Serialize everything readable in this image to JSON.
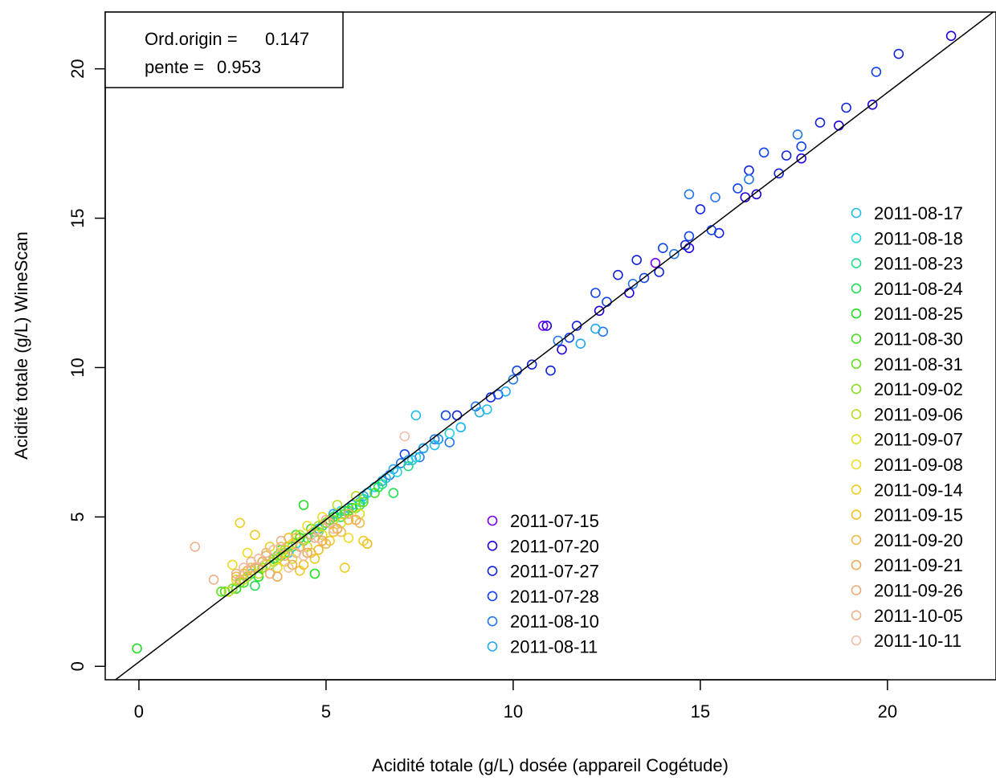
{
  "chart_data": {
    "type": "scatter",
    "title": "",
    "xlabel": "Acidité totale (g/L) dosée (appareil Cogétude)",
    "ylabel": "Acidité totale (g/L) WineScan",
    "xlim": [
      -0.9,
      22.9
    ],
    "ylim": [
      -0.45,
      21.9
    ],
    "xticks": [
      0,
      5,
      10,
      15,
      20
    ],
    "xtick_labels": [
      "0",
      "5",
      "10",
      "15",
      "20"
    ],
    "yticks": [
      0,
      5,
      10,
      15,
      20
    ],
    "ytick_labels": [
      "0",
      "5",
      "10",
      "15",
      "20"
    ],
    "grid": false,
    "regression": {
      "intercept": 0.147,
      "slope": 0.953,
      "label_intercept": "Ord.origin =",
      "value_intercept": "0.147",
      "label_slope": "pente =",
      "value_slope": "0.953"
    },
    "legend_placement": "bottom-right (two columns)",
    "series": [
      {
        "name": "2011-07-15",
        "color": "#7700ee",
        "points": [
          [
            10.8,
            11.4
          ],
          [
            13.8,
            13.5
          ]
        ]
      },
      {
        "name": "2011-07-20",
        "color": "#2200dd",
        "points": [
          [
            8.0,
            7.6
          ],
          [
            10.9,
            11.4
          ],
          [
            11.3,
            10.6
          ],
          [
            12.3,
            11.9
          ],
          [
            13.1,
            12.5
          ],
          [
            14.7,
            14.0
          ],
          [
            16.2,
            15.7
          ],
          [
            16.5,
            15.8
          ],
          [
            17.7,
            17.0
          ],
          [
            18.7,
            18.1
          ],
          [
            19.6,
            18.8
          ],
          [
            21.7,
            21.1
          ]
        ]
      },
      {
        "name": "2011-07-27",
        "color": "#1122dd",
        "points": [
          [
            8.5,
            8.4
          ],
          [
            9.4,
            9.0
          ],
          [
            10.5,
            10.1
          ],
          [
            11.0,
            9.9
          ],
          [
            11.7,
            11.4
          ],
          [
            12.8,
            13.1
          ],
          [
            13.3,
            13.6
          ],
          [
            13.9,
            13.2
          ],
          [
            14.6,
            14.1
          ],
          [
            15.0,
            15.3
          ],
          [
            15.5,
            14.5
          ],
          [
            16.3,
            16.6
          ],
          [
            17.1,
            16.5
          ],
          [
            17.3,
            17.1
          ],
          [
            18.2,
            18.2
          ],
          [
            18.9,
            18.7
          ],
          [
            20.3,
            20.5
          ]
        ]
      },
      {
        "name": "2011-07-28",
        "color": "#1144ee",
        "points": [
          [
            7.1,
            7.1
          ],
          [
            7.6,
            7.3
          ],
          [
            8.2,
            8.4
          ],
          [
            9.6,
            9.1
          ],
          [
            10.1,
            9.9
          ],
          [
            11.5,
            11.0
          ],
          [
            12.2,
            12.5
          ],
          [
            12.5,
            12.2
          ],
          [
            13.5,
            13.0
          ],
          [
            14.0,
            14.0
          ],
          [
            14.7,
            14.4
          ],
          [
            15.3,
            14.6
          ],
          [
            16.0,
            16.0
          ],
          [
            16.7,
            17.2
          ],
          [
            17.7,
            17.4
          ],
          [
            19.7,
            19.9
          ]
        ]
      },
      {
        "name": "2011-08-10",
        "color": "#2277ee",
        "points": [
          [
            6.3,
            6.0
          ],
          [
            6.7,
            6.4
          ],
          [
            7.0,
            6.8
          ],
          [
            7.5,
            7.0
          ],
          [
            7.9,
            7.6
          ],
          [
            8.3,
            7.5
          ],
          [
            9.0,
            8.7
          ],
          [
            10.0,
            9.6
          ],
          [
            11.2,
            10.9
          ],
          [
            12.4,
            11.2
          ],
          [
            13.2,
            12.8
          ],
          [
            14.3,
            13.8
          ],
          [
            14.7,
            15.8
          ],
          [
            15.4,
            15.7
          ],
          [
            16.3,
            16.3
          ],
          [
            17.6,
            17.8
          ]
        ]
      },
      {
        "name": "2011-08-11",
        "color": "#22a8ee",
        "points": [
          [
            4.8,
            4.7
          ],
          [
            5.2,
            5.1
          ],
          [
            5.6,
            5.3
          ],
          [
            6.0,
            5.7
          ],
          [
            6.5,
            6.2
          ],
          [
            6.8,
            6.6
          ],
          [
            7.2,
            6.9
          ],
          [
            7.6,
            7.3
          ],
          [
            8.0,
            7.6
          ],
          [
            8.6,
            8.0
          ],
          [
            9.1,
            8.5
          ],
          [
            9.8,
            9.2
          ],
          [
            11.8,
            10.8
          ],
          [
            12.2,
            11.3
          ]
        ]
      },
      {
        "name": "2011-08-17",
        "color": "#22bbee",
        "points": [
          [
            3.3,
            3.3
          ],
          [
            3.6,
            3.5
          ],
          [
            4.0,
            3.8
          ],
          [
            4.4,
            4.2
          ],
          [
            4.8,
            4.6
          ],
          [
            5.3,
            5.1
          ],
          [
            5.7,
            5.4
          ],
          [
            6.1,
            5.8
          ],
          [
            6.6,
            6.3
          ],
          [
            7.3,
            6.9
          ],
          [
            7.9,
            7.4
          ],
          [
            8.6,
            8.0
          ],
          [
            7.4,
            8.4
          ],
          [
            9.3,
            8.6
          ]
        ]
      },
      {
        "name": "2011-08-18",
        "color": "#22d4dd",
        "points": [
          [
            3.4,
            3.7
          ],
          [
            3.9,
            3.9
          ],
          [
            4.2,
            4.1
          ],
          [
            4.6,
            4.4
          ],
          [
            5.0,
            4.8
          ],
          [
            5.4,
            5.2
          ],
          [
            5.9,
            5.5
          ],
          [
            6.3,
            6.0
          ],
          [
            6.9,
            6.5
          ],
          [
            7.4,
            7.0
          ],
          [
            8.3,
            7.8
          ]
        ]
      },
      {
        "name": "2011-08-23",
        "color": "#22dd88",
        "points": [
          [
            3.0,
            3.1
          ],
          [
            3.5,
            3.4
          ],
          [
            3.9,
            3.8
          ],
          [
            4.3,
            4.0
          ],
          [
            4.7,
            4.5
          ],
          [
            5.1,
            4.9
          ],
          [
            5.5,
            5.2
          ],
          [
            6.0,
            5.6
          ],
          [
            6.5,
            6.1
          ],
          [
            7.2,
            6.7
          ]
        ]
      },
      {
        "name": "2011-08-24",
        "color": "#22dd55",
        "points": [
          [
            3.1,
            2.7
          ],
          [
            3.6,
            3.6
          ],
          [
            4.1,
            4.0
          ],
          [
            4.5,
            4.3
          ],
          [
            4.9,
            4.7
          ],
          [
            5.4,
            5.0
          ],
          [
            5.9,
            5.4
          ],
          [
            6.4,
            6.0
          ],
          [
            6.8,
            5.8
          ]
        ]
      },
      {
        "name": "2011-08-25",
        "color": "#22dd22",
        "points": [
          [
            -0.05,
            0.6
          ],
          [
            2.6,
            2.6
          ],
          [
            3.2,
            3.0
          ],
          [
            3.8,
            3.7
          ],
          [
            4.3,
            4.3
          ],
          [
            4.7,
            3.1
          ],
          [
            5.2,
            5.0
          ],
          [
            5.7,
            5.3
          ],
          [
            4.4,
            5.4
          ]
        ]
      },
      {
        "name": "2011-08-30",
        "color": "#44dd22",
        "points": [
          [
            2.3,
            2.5
          ],
          [
            2.8,
            2.8
          ],
          [
            3.3,
            3.3
          ],
          [
            3.8,
            3.9
          ],
          [
            4.2,
            4.4
          ],
          [
            4.6,
            4.6
          ],
          [
            5.1,
            4.9
          ],
          [
            5.6,
            5.2
          ],
          [
            6.3,
            5.8
          ]
        ]
      },
      {
        "name": "2011-08-31",
        "color": "#66dd22",
        "points": [
          [
            2.2,
            2.5
          ],
          [
            2.7,
            2.8
          ],
          [
            3.2,
            3.3
          ],
          [
            3.7,
            3.7
          ],
          [
            4.1,
            4.1
          ],
          [
            4.6,
            4.4
          ],
          [
            5.0,
            4.8
          ],
          [
            5.5,
            5.1
          ],
          [
            6.0,
            5.5
          ]
        ]
      },
      {
        "name": "2011-09-02",
        "color": "#88dd22",
        "points": [
          [
            2.5,
            2.6
          ],
          [
            2.9,
            3.0
          ],
          [
            3.3,
            3.3
          ],
          [
            3.7,
            3.6
          ],
          [
            4.0,
            4.0
          ],
          [
            4.4,
            4.2
          ],
          [
            4.8,
            4.5
          ],
          [
            5.2,
            4.9
          ],
          [
            5.8,
            5.3
          ]
        ]
      },
      {
        "name": "2011-09-06",
        "color": "#bbdd22",
        "points": [
          [
            2.4,
            2.5
          ],
          [
            2.8,
            2.9
          ],
          [
            3.2,
            3.1
          ],
          [
            3.6,
            3.5
          ],
          [
            3.9,
            3.9
          ],
          [
            4.3,
            4.4
          ],
          [
            4.8,
            4.7
          ],
          [
            5.3,
            5.4
          ],
          [
            5.8,
            5.7
          ]
        ]
      },
      {
        "name": "2011-09-07",
        "color": "#dddd22",
        "points": [
          [
            2.6,
            2.9
          ],
          [
            3.0,
            3.2
          ],
          [
            3.4,
            3.4
          ],
          [
            3.8,
            3.8
          ],
          [
            4.1,
            3.6
          ],
          [
            4.5,
            4.0
          ],
          [
            4.9,
            4.4
          ],
          [
            5.4,
            4.8
          ],
          [
            5.9,
            5.1
          ]
        ]
      },
      {
        "name": "2011-09-08",
        "color": "#eedd22",
        "points": [
          [
            2.5,
            3.4
          ],
          [
            2.9,
            3.8
          ],
          [
            3.3,
            3.5
          ],
          [
            3.7,
            3.3
          ],
          [
            4.1,
            4.1
          ],
          [
            4.5,
            4.7
          ],
          [
            4.9,
            5.0
          ],
          [
            5.3,
            4.6
          ],
          [
            5.6,
            4.3
          ]
        ]
      },
      {
        "name": "2011-09-14",
        "color": "#eecc22",
        "points": [
          [
            2.7,
            4.8
          ],
          [
            3.1,
            4.4
          ],
          [
            3.5,
            4.0
          ],
          [
            3.9,
            3.5
          ],
          [
            4.3,
            3.2
          ],
          [
            4.7,
            3.6
          ],
          [
            5.1,
            4.2
          ],
          [
            5.5,
            3.3
          ],
          [
            6.0,
            4.2
          ]
        ]
      },
      {
        "name": "2011-09-15",
        "color": "#eec022",
        "points": [
          [
            2.8,
            3.1
          ],
          [
            3.2,
            3.6
          ],
          [
            3.6,
            3.9
          ],
          [
            4.0,
            4.3
          ],
          [
            4.4,
            3.4
          ],
          [
            4.8,
            3.9
          ],
          [
            5.2,
            4.5
          ],
          [
            5.6,
            4.9
          ],
          [
            6.1,
            4.1
          ]
        ]
      },
      {
        "name": "2011-09-20",
        "color": "#eebb55",
        "points": [
          [
            2.6,
            3.0
          ],
          [
            3.0,
            3.3
          ],
          [
            3.4,
            3.7
          ],
          [
            3.8,
            4.0
          ],
          [
            4.2,
            4.3
          ],
          [
            4.6,
            3.8
          ],
          [
            5.0,
            4.1
          ],
          [
            5.4,
            4.5
          ],
          [
            5.9,
            4.8
          ]
        ]
      },
      {
        "name": "2011-09-21",
        "color": "#eeaa55",
        "points": [
          [
            2.9,
            3.2
          ],
          [
            3.3,
            3.5
          ],
          [
            3.7,
            3.0
          ],
          [
            4.1,
            3.4
          ],
          [
            4.5,
            3.8
          ],
          [
            4.9,
            4.2
          ],
          [
            5.3,
            4.6
          ],
          [
            5.8,
            4.9
          ]
        ]
      },
      {
        "name": "2011-09-26",
        "color": "#eeaa77",
        "points": [
          [
            2.7,
            2.9
          ],
          [
            3.1,
            3.3
          ],
          [
            3.5,
            3.1
          ],
          [
            3.9,
            3.7
          ],
          [
            4.3,
            4.0
          ],
          [
            4.7,
            4.3
          ],
          [
            5.1,
            4.8
          ],
          [
            5.6,
            5.1
          ]
        ]
      },
      {
        "name": "2011-10-05",
        "color": "#eeb088",
        "points": [
          [
            1.5,
            4.0
          ],
          [
            2.0,
            2.9
          ],
          [
            2.6,
            3.1
          ],
          [
            3.0,
            3.5
          ],
          [
            3.4,
            3.8
          ],
          [
            3.8,
            4.2
          ],
          [
            4.2,
            3.8
          ],
          [
            4.6,
            4.4
          ],
          [
            5.0,
            4.9
          ]
        ]
      },
      {
        "name": "2011-10-11",
        "color": "#eec0aa",
        "points": [
          [
            2.8,
            3.3
          ],
          [
            3.2,
            3.6
          ],
          [
            3.6,
            3.9
          ],
          [
            4.0,
            3.3
          ],
          [
            4.4,
            3.7
          ],
          [
            4.8,
            4.3
          ],
          [
            5.2,
            4.6
          ],
          [
            7.1,
            7.7
          ]
        ]
      }
    ],
    "legend_col1": [
      "2011-07-15",
      "2011-07-20",
      "2011-07-27",
      "2011-07-28",
      "2011-08-10",
      "2011-08-11"
    ],
    "legend_col2": [
      "2011-08-17",
      "2011-08-18",
      "2011-08-23",
      "2011-08-24",
      "2011-08-25",
      "2011-08-30",
      "2011-08-31",
      "2011-09-02",
      "2011-09-06",
      "2011-09-07",
      "2011-09-08",
      "2011-09-14",
      "2011-09-15",
      "2011-09-20",
      "2011-09-21",
      "2011-09-26",
      "2011-10-05",
      "2011-10-11"
    ]
  }
}
